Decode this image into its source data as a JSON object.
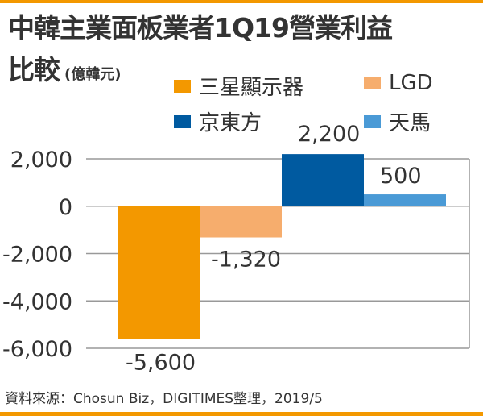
{
  "title_line1": "中韓主業面板業者1Q19營業利益",
  "title_line2": "比較",
  "unit": "(億韓元)",
  "source": "資料來源：Chosun Biz，DIGITIMES整理，2019/5",
  "colors": {
    "accent": "#f39800",
    "samsung": "#f39800",
    "lgd": "#f6ad6d",
    "boe": "#005aa0",
    "tianma": "#4a9ad6",
    "grid": "#999999",
    "text": "#333333"
  },
  "legend": [
    {
      "label": "三星顯示器",
      "color": "#f39800"
    },
    {
      "label": "LGD",
      "color": "#f6ad6d"
    },
    {
      "label": "京東方",
      "color": "#005aa0"
    },
    {
      "label": "天馬",
      "color": "#4a9ad6"
    }
  ],
  "chart_data": {
    "type": "bar",
    "title": "中韓主業面板業者1Q19營業利益比較",
    "ylabel": "(億韓元)",
    "xlabel": "",
    "categories": [
      "三星顯示器",
      "LGD",
      "京東方",
      "天馬"
    ],
    "values": [
      -5600,
      -1320,
      2200,
      500
    ],
    "value_labels": [
      "-5,600",
      "-1,320",
      "2,200",
      "500"
    ],
    "ylim": [
      -6000,
      2000
    ],
    "yticks": [
      2000,
      0,
      -2000,
      -4000,
      -6000
    ],
    "ytick_labels": [
      "2,000",
      "0",
      "-2,000",
      "-4,000",
      "-6,000"
    ],
    "grid": true,
    "legend_position": "top"
  }
}
